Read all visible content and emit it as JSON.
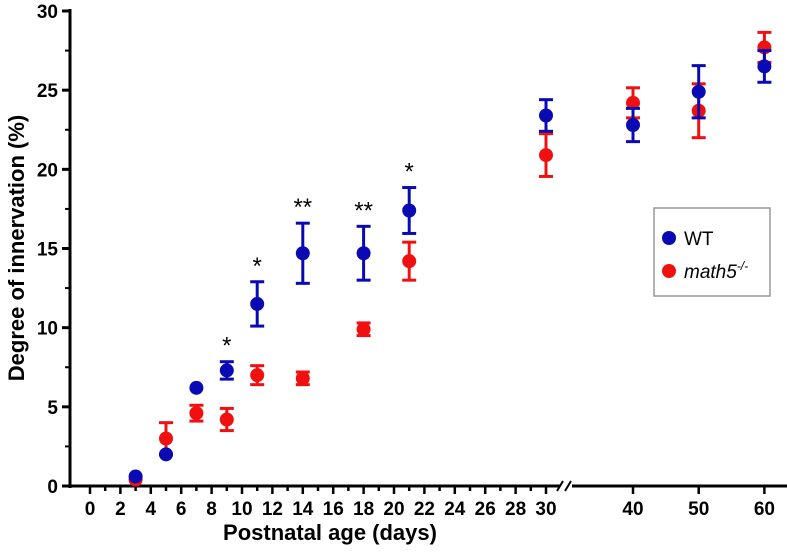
{
  "chart_data": {
    "type": "scatter",
    "title": "",
    "xlabel": "Postnatal age (days)",
    "ylabel": "Degree of innervation (%)",
    "ylim": [
      0,
      30
    ],
    "yticks": [
      0,
      5,
      10,
      15,
      20,
      25,
      30
    ],
    "xticks_left": [
      0,
      2,
      4,
      6,
      8,
      10,
      12,
      14,
      16,
      18,
      20,
      22,
      24,
      26,
      28,
      30
    ],
    "xticks_right": [
      40,
      50,
      60
    ],
    "x_axis_break": "between 30 and 40",
    "legend_position": "right",
    "series": [
      {
        "name": "WT",
        "color": "#0a0ab4",
        "x": [
          3,
          5,
          7,
          9,
          11,
          14,
          18,
          21,
          30,
          40,
          50,
          60
        ],
        "y": [
          0.6,
          2.0,
          6.2,
          7.3,
          11.5,
          14.7,
          14.7,
          17.4,
          23.4,
          22.8,
          24.9,
          26.5
        ],
        "err": [
          0,
          0,
          0,
          0.55,
          1.4,
          1.9,
          1.7,
          1.45,
          1.0,
          1.05,
          1.65,
          1.0
        ]
      },
      {
        "name": "math5",
        "superscript": "-/-",
        "color": "#f01010",
        "x": [
          3,
          5,
          7,
          9,
          11,
          14,
          18,
          21,
          30,
          40,
          50,
          60
        ],
        "y": [
          0.4,
          3.0,
          4.6,
          4.2,
          7.0,
          6.8,
          9.9,
          14.2,
          20.9,
          24.2,
          23.7,
          27.7
        ],
        "err": [
          0,
          1.0,
          0.5,
          0.7,
          0.6,
          0.4,
          0.4,
          1.2,
          1.35,
          0.95,
          1.7,
          0.95
        ]
      }
    ],
    "annotations": [
      {
        "x": 9,
        "text": "*",
        "series": "WT"
      },
      {
        "x": 11,
        "text": "*",
        "series": "WT"
      },
      {
        "x": 14,
        "text": "**",
        "series": "WT"
      },
      {
        "x": 18,
        "text": "**",
        "series": "WT"
      },
      {
        "x": 21,
        "text": "*",
        "series": "WT"
      }
    ]
  }
}
